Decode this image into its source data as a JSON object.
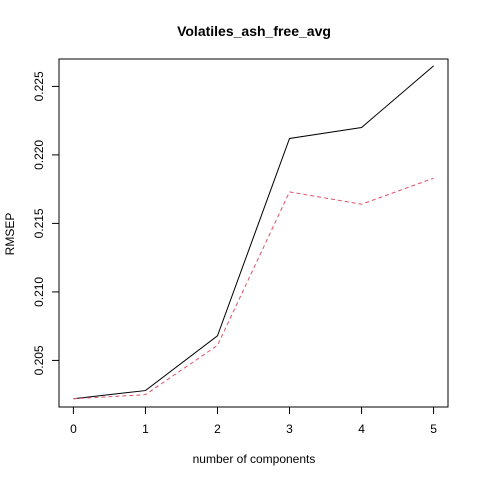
{
  "chart_data": {
    "type": "line",
    "title": "Volatiles_ash_free_avg",
    "xlabel": "number of components",
    "ylabel": "RMSEP",
    "x": [
      0,
      1,
      2,
      3,
      4,
      5
    ],
    "x_ticks": [
      "0",
      "1",
      "2",
      "3",
      "4",
      "5"
    ],
    "y_ticks": [
      "0.205",
      "0.210",
      "0.215",
      "0.220",
      "0.225"
    ],
    "xlim": [
      -0.2,
      5.2
    ],
    "ylim": [
      0.2016,
      0.227
    ],
    "grid": false,
    "series": [
      {
        "values": [
          0.2022,
          0.2028,
          0.2068,
          0.2212,
          0.222,
          0.2265
        ],
        "color": "#000000",
        "style": "solid"
      },
      {
        "values": [
          0.2022,
          0.2025,
          0.2061,
          0.2173,
          0.2164,
          0.2183
        ],
        "color": "#DF536B",
        "style": "dashed"
      }
    ]
  }
}
